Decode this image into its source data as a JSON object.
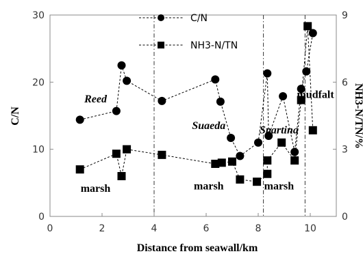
{
  "chart_data": {
    "type": "line",
    "xlabel": "Distance from seawall/km",
    "ylabel": "C/N",
    "y2label": "NH3-N/TN/%",
    "xlim": [
      0,
      11
    ],
    "ylim": [
      0,
      30
    ],
    "y2lim": [
      0,
      9
    ],
    "xticks": [
      "0",
      "2",
      "4",
      "6",
      "8",
      "10"
    ],
    "yticks": [
      "0",
      "10",
      "20",
      "30"
    ],
    "y2ticks": [
      "0",
      "3",
      "6",
      "9"
    ],
    "grid": false,
    "legend_position": "top-center",
    "series": [
      {
        "name": "C/N",
        "axis": "left",
        "marker": "circle",
        "line_style": "dashed",
        "x": [
          1.15,
          2.55,
          2.75,
          2.95,
          4.3,
          6.35,
          6.55,
          6.95,
          7.3,
          8.0,
          8.35,
          8.4,
          8.95,
          9.4,
          9.65,
          9.85,
          10.1
        ],
        "y": [
          14.4,
          15.7,
          22.5,
          20.2,
          17.2,
          20.4,
          17.1,
          11.7,
          9.0,
          11.0,
          21.3,
          12.0,
          17.9,
          9.6,
          19.0,
          21.6,
          27.3
        ]
      },
      {
        "name": "NH3-N/TN",
        "axis": "right",
        "marker": "square",
        "line_style": "dashed",
        "x": [
          1.15,
          2.55,
          2.75,
          2.95,
          4.3,
          6.35,
          6.6,
          7.0,
          7.3,
          7.95,
          8.35,
          8.35,
          8.9,
          9.4,
          9.65,
          9.9,
          10.1
        ],
        "y": [
          2.1,
          2.8,
          1.8,
          3.0,
          2.75,
          2.35,
          2.4,
          2.45,
          1.65,
          1.55,
          1.9,
          2.5,
          3.3,
          2.5,
          5.2,
          8.5,
          3.85
        ]
      }
    ],
    "dividers_x": [
      4.0,
      8.2,
      9.8
    ],
    "zones": [
      {
        "line1": "Reed",
        "line2": "marsh",
        "x1": 1.75,
        "y1": 5.1,
        "x2": 1.75,
        "y2": 1.1,
        "italic1": true
      },
      {
        "line1": "Suaeda",
        "line2": "marsh",
        "x1": 6.1,
        "y1": 3.9,
        "x2": 6.1,
        "y2": 1.2,
        "italic1": true
      },
      {
        "line1": "Spartina",
        "line2": "marsh",
        "x1": 8.8,
        "y1": 3.7,
        "x2": 8.8,
        "y2": 1.2,
        "italic1": true
      },
      {
        "line1": "mudfalt",
        "line2": "",
        "x1": 10.2,
        "y1": 5.3,
        "x2": 10.2,
        "y2": 5.3,
        "italic1": false
      }
    ],
    "colors": {
      "line": "#000000",
      "marker": "#000000",
      "divider": "#333333"
    }
  }
}
